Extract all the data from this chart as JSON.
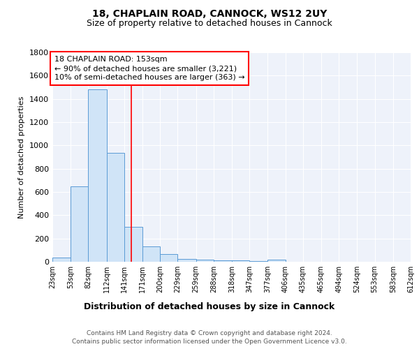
{
  "title1": "18, CHAPLAIN ROAD, CANNOCK, WS12 2UY",
  "title2": "Size of property relative to detached houses in Cannock",
  "xlabel": "Distribution of detached houses by size in Cannock",
  "ylabel": "Number of detached properties",
  "footnote1": "Contains HM Land Registry data © Crown copyright and database right 2024.",
  "footnote2": "Contains public sector information licensed under the Open Government Licence v3.0.",
  "bin_edges": [
    23,
    53,
    82,
    112,
    141,
    171,
    200,
    229,
    259,
    288,
    318,
    347,
    377,
    406,
    435,
    465,
    494,
    524,
    553,
    583,
    612
  ],
  "bar_heights": [
    35,
    650,
    1480,
    935,
    300,
    130,
    65,
    25,
    20,
    15,
    10,
    5,
    20,
    0,
    0,
    0,
    0,
    0,
    0,
    0
  ],
  "bar_color": "#d0e4f7",
  "bar_edge_color": "#5b9bd5",
  "red_line_x": 153,
  "annotation_line1": "18 CHAPLAIN ROAD: 153sqm",
  "annotation_line2": "← 90% of detached houses are smaller (3,221)",
  "annotation_line3": "10% of semi-detached houses are larger (363) →",
  "ylim": [
    0,
    1800
  ],
  "yticks": [
    0,
    200,
    400,
    600,
    800,
    1000,
    1200,
    1400,
    1600,
    1800
  ],
  "tick_labels": [
    "23sqm",
    "53sqm",
    "82sqm",
    "112sqm",
    "141sqm",
    "171sqm",
    "200sqm",
    "229sqm",
    "259sqm",
    "288sqm",
    "318sqm",
    "347sqm",
    "377sqm",
    "406sqm",
    "435sqm",
    "465sqm",
    "494sqm",
    "524sqm",
    "553sqm",
    "583sqm",
    "612sqm"
  ],
  "bg_color": "#eef2fa",
  "grid_color": "white",
  "title1_fontsize": 10,
  "title2_fontsize": 9,
  "ylabel_fontsize": 8,
  "xlabel_fontsize": 9,
  "ytick_fontsize": 8,
  "xtick_fontsize": 7,
  "annot_fontsize": 8,
  "footnote_fontsize": 6.5
}
